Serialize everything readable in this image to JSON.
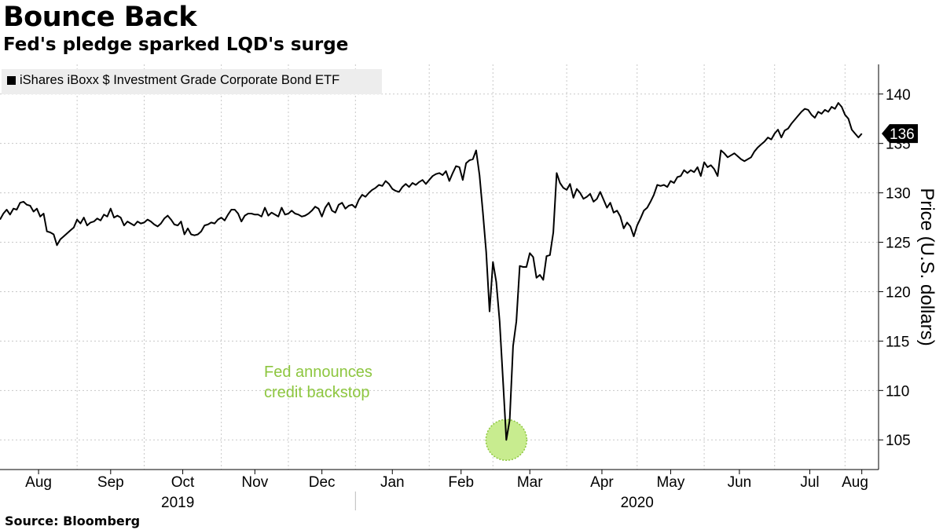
{
  "title": "Bounce Back",
  "subtitle": "Fed's pledge sparked LQD's surge",
  "source": "Source: Bloomberg",
  "legend_label": "iShares iBoxx $ Investment Grade Corporate Bond ETF",
  "annotation": {
    "line1": "Fed announces",
    "line2": "credit backstop"
  },
  "last_value_label": "136",
  "colors": {
    "line": "#000000",
    "annotation": "#8dc63f",
    "highlight_fill": "#c8ec8f",
    "grid": "#c8c8c8",
    "legend_bg": "#ededed"
  },
  "chart_data": {
    "type": "line",
    "ylabel": "Price (U.S. dollars)",
    "ylim": [
      102,
      143
    ],
    "yticks": [
      105,
      110,
      115,
      120,
      125,
      130,
      135,
      140
    ],
    "x_unit": "trading session",
    "month_ticks": [
      {
        "label": "Aug",
        "index": 0
      },
      {
        "label": "Sep",
        "index": 23
      },
      {
        "label": "Oct",
        "index": 43
      },
      {
        "label": "Nov",
        "index": 66
      },
      {
        "label": "Dec",
        "index": 86
      },
      {
        "label": "Jan",
        "index": 106
      },
      {
        "label": "Feb",
        "index": 128
      },
      {
        "label": "Mar",
        "index": 147
      },
      {
        "label": "Apr",
        "index": 169
      },
      {
        "label": "May",
        "index": 190
      },
      {
        "label": "Jun",
        "index": 210
      },
      {
        "label": "Jul",
        "index": 231
      },
      {
        "label": "Aug",
        "index": 252
      }
    ],
    "x_range": [
      0,
      262
    ],
    "years": [
      {
        "label": "2019",
        "center_index": 53
      },
      {
        "label": "2020",
        "center_index": 190
      }
    ],
    "year_divider_index": 106,
    "grid": true,
    "legend_position": "top-left",
    "series": [
      {
        "name": "iShares iBoxx $ Investment Grade Corporate Bond ETF",
        "points": [
          [
            0,
            127.3
          ],
          [
            1,
            127.9
          ],
          [
            2,
            128.3
          ],
          [
            3,
            127.8
          ],
          [
            4,
            128.4
          ],
          [
            5,
            128.3
          ],
          [
            6,
            129.0
          ],
          [
            7,
            129.1
          ],
          [
            8,
            128.8
          ],
          [
            9,
            128.7
          ],
          [
            10,
            128.1
          ],
          [
            11,
            128.4
          ],
          [
            12,
            127.6
          ],
          [
            13,
            127.9
          ],
          [
            14,
            126.1
          ],
          [
            15,
            126.0
          ],
          [
            16,
            125.8
          ],
          [
            17,
            124.7
          ],
          [
            18,
            125.3
          ],
          [
            19,
            125.6
          ],
          [
            20,
            125.9
          ],
          [
            21,
            126.2
          ],
          [
            22,
            126.5
          ],
          [
            23,
            127.3
          ],
          [
            24,
            126.9
          ],
          [
            25,
            127.5
          ],
          [
            26,
            126.7
          ],
          [
            27,
            127.0
          ],
          [
            28,
            127.1
          ],
          [
            29,
            127.4
          ],
          [
            30,
            127.2
          ],
          [
            31,
            127.8
          ],
          [
            32,
            127.6
          ],
          [
            33,
            128.4
          ],
          [
            34,
            127.5
          ],
          [
            35,
            127.7
          ],
          [
            36,
            127.5
          ],
          [
            37,
            126.7
          ],
          [
            38,
            127.1
          ],
          [
            39,
            126.9
          ],
          [
            40,
            126.7
          ],
          [
            41,
            127.1
          ],
          [
            42,
            126.9
          ],
          [
            43,
            127.0
          ],
          [
            44,
            127.3
          ],
          [
            45,
            127.1
          ],
          [
            46,
            126.8
          ],
          [
            47,
            126.6
          ],
          [
            48,
            126.9
          ],
          [
            49,
            127.4
          ],
          [
            50,
            127.7
          ],
          [
            51,
            127.3
          ],
          [
            52,
            126.8
          ],
          [
            53,
            126.7
          ],
          [
            54,
            127.1
          ],
          [
            55,
            125.8
          ],
          [
            56,
            126.4
          ],
          [
            57,
            125.8
          ],
          [
            58,
            125.7
          ],
          [
            59,
            125.8
          ],
          [
            60,
            126.1
          ],
          [
            61,
            126.7
          ],
          [
            62,
            126.8
          ],
          [
            63,
            127.0
          ],
          [
            64,
            126.9
          ],
          [
            65,
            127.3
          ],
          [
            66,
            127.5
          ],
          [
            67,
            127.2
          ],
          [
            68,
            127.8
          ],
          [
            69,
            128.3
          ],
          [
            70,
            128.3
          ],
          [
            71,
            127.9
          ],
          [
            72,
            127.1
          ],
          [
            73,
            127.7
          ],
          [
            74,
            127.9
          ],
          [
            75,
            127.9
          ],
          [
            76,
            127.8
          ],
          [
            77,
            127.8
          ],
          [
            78,
            127.6
          ],
          [
            79,
            128.5
          ],
          [
            80,
            127.7
          ],
          [
            81,
            128.0
          ],
          [
            82,
            127.8
          ],
          [
            83,
            127.6
          ],
          [
            84,
            128.5
          ],
          [
            85,
            127.8
          ],
          [
            86,
            127.9
          ],
          [
            87,
            128.2
          ],
          [
            88,
            127.9
          ],
          [
            89,
            127.8
          ],
          [
            90,
            127.6
          ],
          [
            91,
            127.7
          ],
          [
            92,
            127.9
          ],
          [
            93,
            128.2
          ],
          [
            94,
            128.6
          ],
          [
            95,
            128.4
          ],
          [
            96,
            127.6
          ],
          [
            97,
            128.5
          ],
          [
            98,
            129.0
          ],
          [
            99,
            128.2
          ],
          [
            100,
            128.0
          ],
          [
            101,
            128.8
          ],
          [
            102,
            129.0
          ],
          [
            103,
            128.4
          ],
          [
            104,
            128.7
          ],
          [
            105,
            128.8
          ],
          [
            106,
            128.5
          ],
          [
            107,
            129.3
          ],
          [
            108,
            129.8
          ],
          [
            109,
            129.6
          ],
          [
            110,
            130.0
          ],
          [
            111,
            130.3
          ],
          [
            112,
            130.5
          ],
          [
            113,
            130.8
          ],
          [
            114,
            130.7
          ],
          [
            115,
            131.2
          ],
          [
            116,
            130.9
          ],
          [
            117,
            130.4
          ],
          [
            118,
            130.2
          ],
          [
            119,
            130.1
          ],
          [
            120,
            130.6
          ],
          [
            121,
            130.9
          ],
          [
            122,
            130.6
          ],
          [
            123,
            131.0
          ],
          [
            124,
            130.8
          ],
          [
            125,
            131.1
          ],
          [
            126,
            131.3
          ],
          [
            127,
            130.9
          ],
          [
            128,
            131.3
          ],
          [
            129,
            131.7
          ],
          [
            130,
            131.9
          ],
          [
            131,
            132.0
          ],
          [
            132,
            131.8
          ],
          [
            133,
            132.2
          ],
          [
            134,
            131.2
          ],
          [
            135,
            132.0
          ],
          [
            136,
            132.7
          ],
          [
            137,
            132.6
          ],
          [
            138,
            131.3
          ],
          [
            139,
            133.0
          ],
          [
            140,
            133.3
          ],
          [
            141,
            133.4
          ],
          [
            142,
            134.3
          ],
          [
            143,
            131.8
          ],
          [
            144,
            128.0
          ],
          [
            145,
            124.0
          ],
          [
            146,
            118.0
          ],
          [
            147,
            123.0
          ],
          [
            148,
            121.0
          ],
          [
            149,
            117.0
          ],
          [
            150,
            111.0
          ],
          [
            151,
            105.0
          ],
          [
            152,
            107.0
          ],
          [
            153,
            114.5
          ],
          [
            154,
            117.0
          ],
          [
            155,
            122.6
          ],
          [
            156,
            122.5
          ],
          [
            157,
            122.5
          ],
          [
            158,
            123.9
          ],
          [
            159,
            123.5
          ],
          [
            160,
            121.4
          ],
          [
            161,
            121.7
          ],
          [
            162,
            121.2
          ],
          [
            163,
            123.6
          ],
          [
            164,
            123.7
          ],
          [
            165,
            126.0
          ],
          [
            166,
            132.0
          ],
          [
            167,
            131.0
          ],
          [
            168,
            130.5
          ],
          [
            169,
            130.3
          ],
          [
            170,
            130.9
          ],
          [
            171,
            129.5
          ],
          [
            172,
            130.4
          ],
          [
            173,
            130.0
          ],
          [
            174,
            129.4
          ],
          [
            175,
            129.6
          ],
          [
            176,
            129.9
          ],
          [
            177,
            129.1
          ],
          [
            178,
            129.4
          ],
          [
            179,
            130.1
          ],
          [
            180,
            129.3
          ],
          [
            181,
            128.5
          ],
          [
            182,
            129.0
          ],
          [
            183,
            128.0
          ],
          [
            184,
            128.2
          ],
          [
            185,
            127.6
          ],
          [
            186,
            126.4
          ],
          [
            187,
            127.0
          ],
          [
            188,
            126.6
          ],
          [
            189,
            125.6
          ],
          [
            190,
            126.7
          ],
          [
            191,
            127.4
          ],
          [
            192,
            128.2
          ],
          [
            193,
            128.5
          ],
          [
            194,
            129.1
          ],
          [
            195,
            129.8
          ],
          [
            196,
            130.8
          ],
          [
            197,
            130.7
          ],
          [
            198,
            130.8
          ],
          [
            199,
            130.6
          ],
          [
            200,
            131.2
          ],
          [
            201,
            131.0
          ],
          [
            202,
            131.6
          ],
          [
            203,
            131.7
          ],
          [
            204,
            132.3
          ],
          [
            205,
            132.0
          ],
          [
            206,
            132.3
          ],
          [
            207,
            132.1
          ],
          [
            208,
            132.6
          ],
          [
            209,
            131.7
          ],
          [
            210,
            133.1
          ],
          [
            211,
            132.6
          ],
          [
            212,
            132.8
          ],
          [
            213,
            132.4
          ],
          [
            214,
            131.7
          ],
          [
            215,
            134.3
          ],
          [
            216,
            134.0
          ],
          [
            217,
            133.6
          ],
          [
            218,
            133.8
          ],
          [
            219,
            134.0
          ],
          [
            220,
            133.7
          ],
          [
            221,
            133.4
          ],
          [
            222,
            133.2
          ],
          [
            223,
            133.4
          ],
          [
            224,
            133.6
          ],
          [
            225,
            134.2
          ],
          [
            226,
            134.6
          ],
          [
            227,
            134.9
          ],
          [
            228,
            135.2
          ],
          [
            229,
            135.6
          ],
          [
            230,
            135.4
          ],
          [
            231,
            136.0
          ],
          [
            232,
            136.4
          ],
          [
            233,
            135.6
          ],
          [
            234,
            136.3
          ],
          [
            235,
            136.5
          ],
          [
            236,
            137.0
          ],
          [
            237,
            137.4
          ],
          [
            238,
            137.8
          ],
          [
            239,
            138.2
          ],
          [
            240,
            138.5
          ],
          [
            241,
            138.4
          ],
          [
            242,
            137.9
          ],
          [
            243,
            137.6
          ],
          [
            244,
            138.2
          ],
          [
            245,
            138.0
          ],
          [
            246,
            138.4
          ],
          [
            247,
            138.2
          ],
          [
            248,
            138.7
          ],
          [
            249,
            138.5
          ],
          [
            250,
            139.1
          ],
          [
            251,
            138.7
          ],
          [
            252,
            137.9
          ],
          [
            253,
            137.5
          ],
          [
            254,
            136.4
          ],
          [
            255,
            136.0
          ],
          [
            256,
            135.6
          ],
          [
            257,
            136.0
          ]
        ]
      }
    ],
    "annotations": [
      {
        "text": "Fed announces credit backstop",
        "x": 151,
        "y": 105
      }
    ]
  }
}
